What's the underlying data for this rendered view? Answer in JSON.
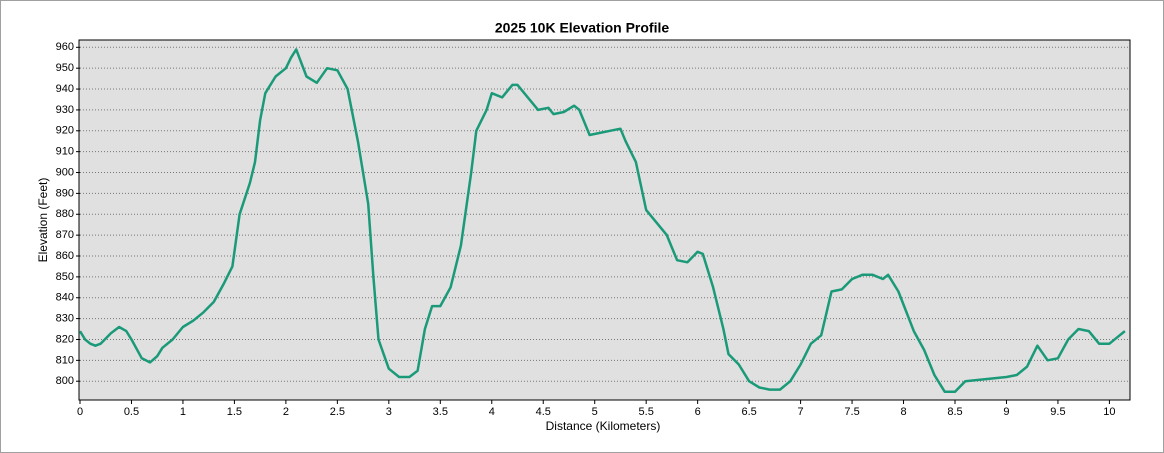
{
  "chart_data": {
    "type": "line",
    "title": "2025 10K Elevation Profile",
    "x_label": "Distance (Kilometers)",
    "y_label": "Elevation (Feet)",
    "x": [
      0,
      0.05,
      0.1,
      0.15,
      0.2,
      0.3,
      0.38,
      0.45,
      0.5,
      0.6,
      0.68,
      0.75,
      0.8,
      0.9,
      1.0,
      1.1,
      1.2,
      1.3,
      1.4,
      1.48,
      1.55,
      1.65,
      1.7,
      1.75,
      1.8,
      1.9,
      2.0,
      2.05,
      2.1,
      2.2,
      2.3,
      2.4,
      2.5,
      2.6,
      2.7,
      2.8,
      2.85,
      2.9,
      3.0,
      3.1,
      3.2,
      3.28,
      3.35,
      3.42,
      3.5,
      3.6,
      3.7,
      3.8,
      3.85,
      3.95,
      4.0,
      4.1,
      4.2,
      4.25,
      4.35,
      4.45,
      4.55,
      4.6,
      4.7,
      4.8,
      4.85,
      4.95,
      5.05,
      5.15,
      5.25,
      5.3,
      5.4,
      5.5,
      5.6,
      5.7,
      5.8,
      5.9,
      6.0,
      6.05,
      6.15,
      6.25,
      6.3,
      6.4,
      6.5,
      6.6,
      6.7,
      6.8,
      6.9,
      7.0,
      7.1,
      7.2,
      7.3,
      7.4,
      7.5,
      7.6,
      7.7,
      7.8,
      7.85,
      7.95,
      8.1,
      8.2,
      8.3,
      8.4,
      8.5,
      8.6,
      8.8,
      9.0,
      9.1,
      9.2,
      9.3,
      9.4,
      9.5,
      9.6,
      9.7,
      9.8,
      9.9,
      10.0,
      10.1,
      10.15
    ],
    "series": [
      {
        "name": "Elevation",
        "color": "#1a9a78",
        "values": [
          824,
          820,
          818,
          817,
          818,
          823,
          826,
          824,
          820,
          811,
          809,
          812,
          816,
          820,
          826,
          829,
          833,
          838,
          847,
          855,
          880,
          895,
          905,
          925,
          938,
          946,
          950,
          955,
          959,
          946,
          943,
          950,
          949,
          940,
          915,
          885,
          850,
          820,
          806,
          802,
          802,
          805,
          825,
          836,
          836,
          845,
          865,
          900,
          920,
          930,
          938,
          936,
          942,
          942,
          936,
          930,
          931,
          928,
          929,
          932,
          930,
          918,
          919,
          920,
          921,
          915,
          905,
          882,
          876,
          870,
          858,
          857,
          862,
          861,
          845,
          825,
          813,
          808,
          800,
          797,
          796,
          796,
          800,
          808,
          818,
          822,
          843,
          844,
          849,
          851,
          851,
          849,
          851,
          843,
          824,
          815,
          803,
          795,
          795,
          800,
          801,
          802,
          803,
          807,
          817,
          810,
          811,
          820,
          825,
          824,
          818,
          818,
          822,
          824
        ]
      }
    ],
    "xlim": [
      0,
      10.2
    ],
    "ylim": [
      791,
      963.5
    ],
    "xticks": [
      0,
      0.5,
      1,
      1.5,
      2,
      2.5,
      3,
      3.5,
      4,
      4.5,
      5,
      5.5,
      6,
      6.5,
      7,
      7.5,
      8,
      8.5,
      9,
      9.5,
      10
    ],
    "yticks": [
      800,
      810,
      820,
      830,
      840,
      850,
      860,
      870,
      880,
      890,
      900,
      910,
      920,
      930,
      940,
      950,
      960
    ],
    "grid": true
  }
}
